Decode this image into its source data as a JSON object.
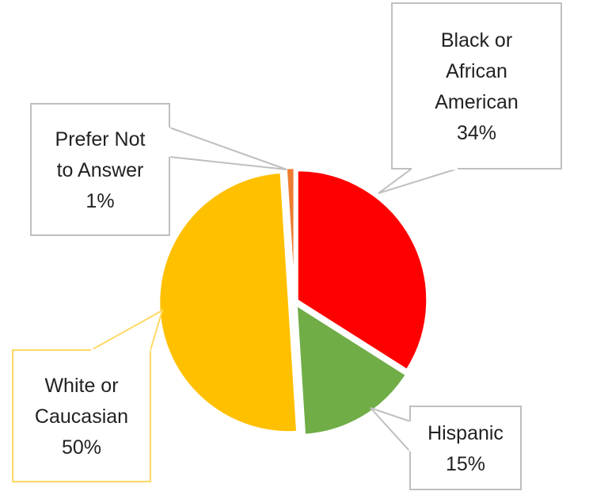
{
  "chart_data": {
    "type": "pie",
    "title": "",
    "slices": [
      {
        "label_lines": [
          "Black or",
          "African",
          "American"
        ],
        "pct_label": "34%",
        "value": 34,
        "color": "#ff0000",
        "callout_border": "#bfbfbf"
      },
      {
        "label_lines": [
          "Hispanic"
        ],
        "pct_label": "15%",
        "value": 15,
        "color": "#70ad47",
        "callout_border": "#bfbfbf"
      },
      {
        "label_lines": [
          "White or",
          "Caucasian"
        ],
        "pct_label": "50%",
        "value": 50,
        "color": "#ffc000",
        "callout_border": "#ffd966"
      },
      {
        "label_lines": [
          "Prefer Not",
          "to Answer"
        ],
        "pct_label": "1%",
        "value": 1,
        "color": "#ed7d31",
        "callout_border": "#bfbfbf"
      }
    ]
  }
}
